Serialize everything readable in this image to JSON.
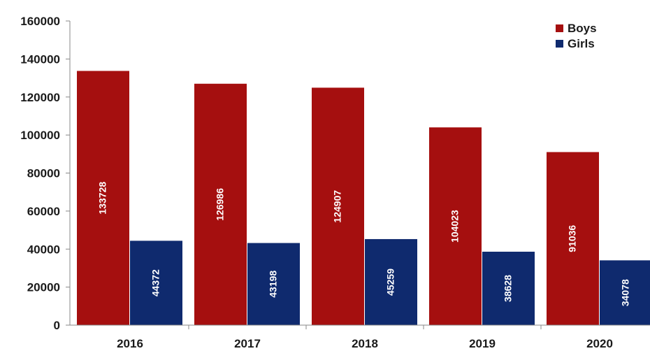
{
  "chart_data": {
    "type": "bar",
    "categories": [
      "2016",
      "2017",
      "2018",
      "2019",
      "2020"
    ],
    "series": [
      {
        "name": "Boys",
        "color": "#a50f0f",
        "values": [
          133728,
          126986,
          124907,
          104023,
          91036
        ]
      },
      {
        "name": "Girls",
        "color": "#0f2a6e",
        "values": [
          44372,
          43198,
          45259,
          38628,
          34078
        ]
      }
    ],
    "yticks": [
      "0",
      "20000",
      "40000",
      "60000",
      "80000",
      "100000",
      "120000",
      "140000",
      "160000"
    ],
    "ylim": [
      0,
      160000
    ],
    "grid": false,
    "legend_position": "top-right",
    "title": "",
    "xlabel": "",
    "ylabel": ""
  }
}
